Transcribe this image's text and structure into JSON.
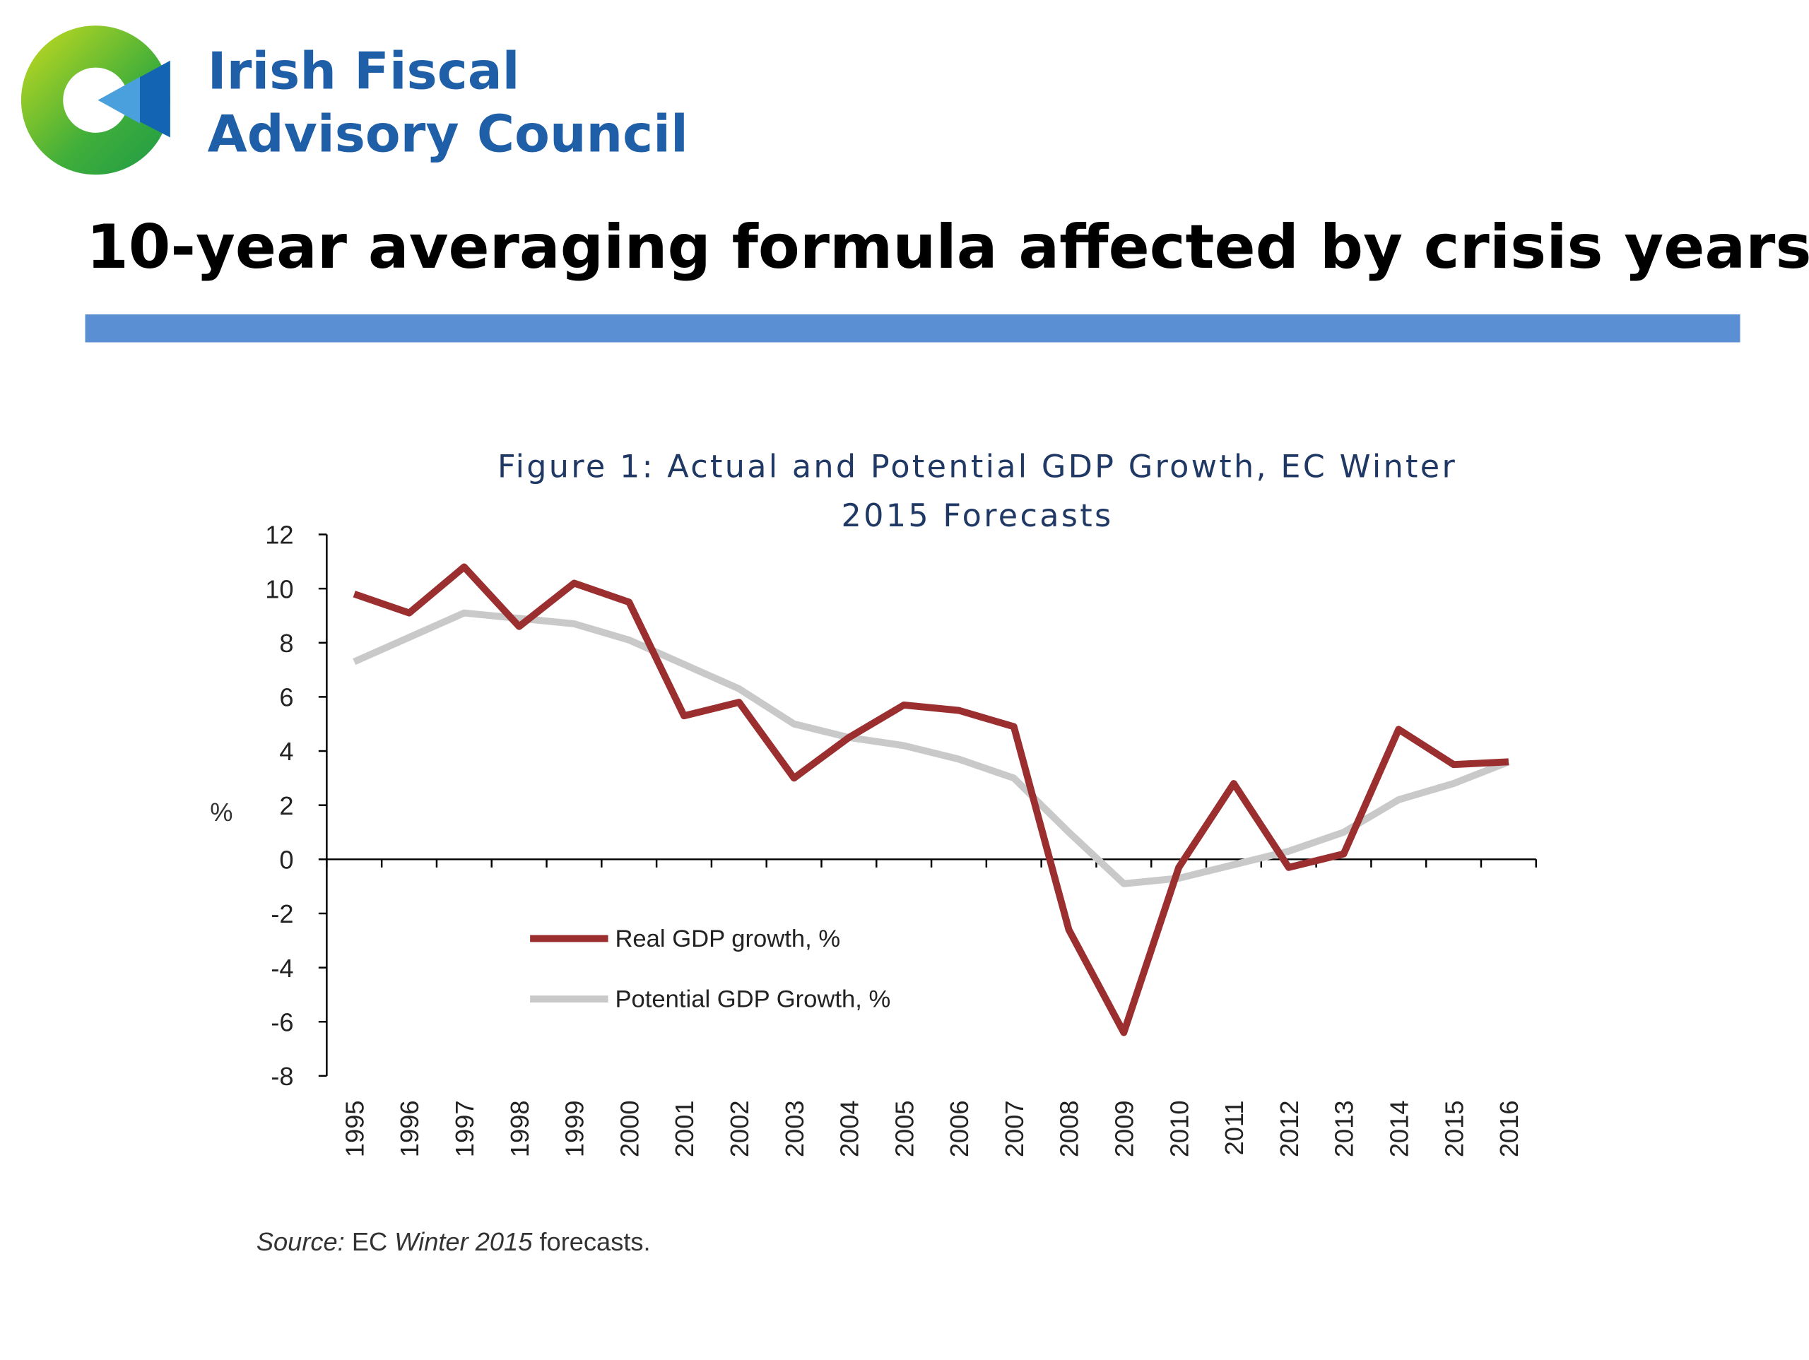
{
  "header": {
    "org_lines": [
      "Irish Fiscal",
      "Advisory Council"
    ],
    "slide_title": "10-year averaging formula affected by crisis years"
  },
  "chart_data": {
    "type": "line",
    "title": [
      "Figure 1: Actual and Potential GDP Growth, EC Winter",
      "2015 Forecasts"
    ],
    "ylabel": "%",
    "categories": [
      "1995",
      "1996",
      "1997",
      "1998",
      "1999",
      "2000",
      "2001",
      "2002",
      "2003",
      "2004",
      "2005",
      "2006",
      "2007",
      "2008",
      "2009",
      "2010",
      "2011",
      "2012",
      "2013",
      "2014",
      "2015",
      "2016"
    ],
    "series": [
      {
        "name": "Real GDP growth, %",
        "color": "#9b2f30",
        "values": [
          9.8,
          9.1,
          10.8,
          8.6,
          10.2,
          9.5,
          5.3,
          5.8,
          3.0,
          4.5,
          5.7,
          5.5,
          4.9,
          -2.6,
          -6.4,
          -0.3,
          2.8,
          -0.3,
          0.2,
          4.8,
          3.5,
          3.6
        ]
      },
      {
        "name": "Potential GDP Growth, %",
        "color": "#c9c9c9",
        "values": [
          7.3,
          8.2,
          9.1,
          8.9,
          8.7,
          8.1,
          7.2,
          6.3,
          5.0,
          4.5,
          4.2,
          3.7,
          3.0,
          1.0,
          -0.9,
          -0.7,
          -0.2,
          0.3,
          1.0,
          2.2,
          2.8,
          3.6
        ]
      }
    ],
    "ylim": [
      -8,
      12
    ],
    "yticks": [
      -8,
      -6,
      -4,
      -2,
      0,
      2,
      4,
      6,
      8,
      10,
      12
    ],
    "grid": false,
    "legend": "lower-left",
    "source": [
      {
        "text": "Source:",
        "italic": true
      },
      {
        "text": " EC ",
        "italic": false
      },
      {
        "text": "Winter 2015",
        "italic": true
      },
      {
        "text": " forecasts.",
        "italic": false
      }
    ]
  }
}
